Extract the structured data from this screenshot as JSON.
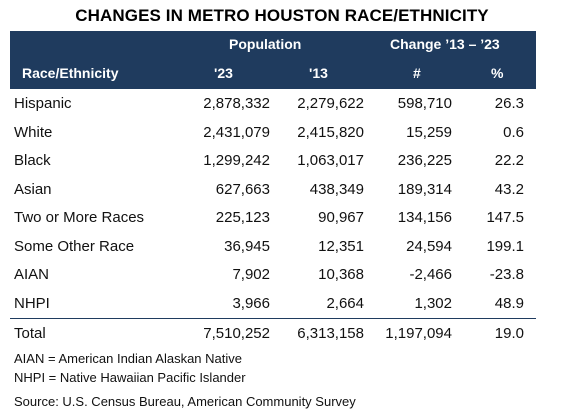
{
  "title": "CHANGES IN METRO HOUSTON RACE/ETHNICITY",
  "header": {
    "population_group": "Population",
    "change_group": "Change ’13 – ’23",
    "col_label": "Race/Ethnicity",
    "col_p23": "'23",
    "col_p13": "'13",
    "col_num": "#",
    "col_pct": "%"
  },
  "rows": [
    {
      "label": "Hispanic",
      "p23": "2,878,332",
      "p13": "2,279,622",
      "num": "598,710",
      "pct": "26.3"
    },
    {
      "label": "White",
      "p23": "2,431,079",
      "p13": "2,415,820",
      "num": "15,259",
      "pct": "0.6"
    },
    {
      "label": "Black",
      "p23": "1,299,242",
      "p13": "1,063,017",
      "num": "236,225",
      "pct": "22.2"
    },
    {
      "label": "Asian",
      "p23": "627,663",
      "p13": "438,349",
      "num": "189,314",
      "pct": "43.2"
    },
    {
      "label": "Two or More Races",
      "p23": "225,123",
      "p13": "90,967",
      "num": "134,156",
      "pct": "147.5"
    },
    {
      "label": "Some Other Race",
      "p23": "36,945",
      "p13": "12,351",
      "num": "24,594",
      "pct": "199.1"
    },
    {
      "label": "AIAN",
      "p23": "7,902",
      "p13": "10,368",
      "num": "-2,466",
      "pct": "-23.8"
    },
    {
      "label": "NHPI",
      "p23": "3,966",
      "p13": "2,664",
      "num": "1,302",
      "pct": "48.9"
    }
  ],
  "total": {
    "label": "Total",
    "p23": "7,510,252",
    "p13": "6,313,158",
    "num": "1,197,094",
    "pct": "19.0"
  },
  "notes": [
    "AIAN = American Indian Alaskan Native",
    "NHPI = Native Hawaiian Pacific Islander",
    "Source: U.S. Census Bureau, American Community Survey"
  ],
  "colors": {
    "header_bg": "#1f3b5e",
    "header_text": "#ffffff"
  }
}
